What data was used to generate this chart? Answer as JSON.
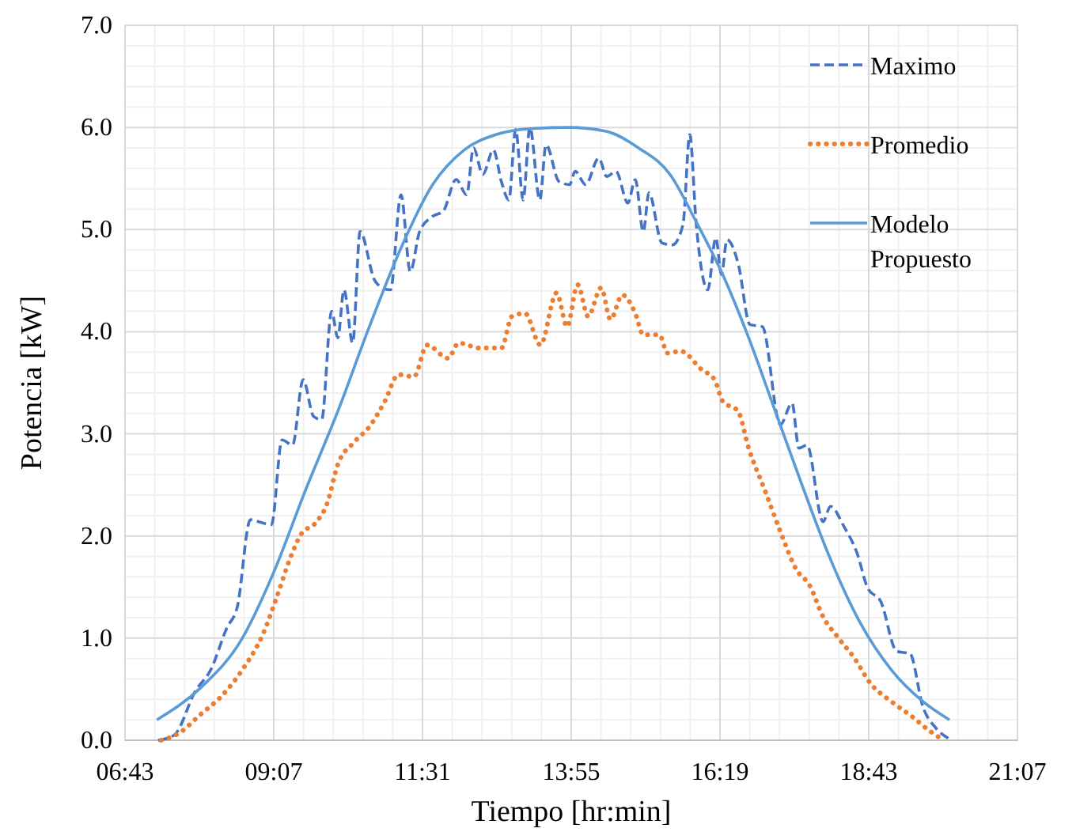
{
  "chart_data": {
    "type": "line",
    "xlabel": "Tiempo [hr:min]",
    "ylabel": "Potencia [kW]",
    "xlim": [
      6.7167,
      21.1167
    ],
    "ylim": [
      0,
      7
    ],
    "xticks": [
      {
        "value": 6.7167,
        "label": "06:43"
      },
      {
        "value": 9.1167,
        "label": "09:07"
      },
      {
        "value": 11.5167,
        "label": "11:31"
      },
      {
        "value": 13.9167,
        "label": "13:55"
      },
      {
        "value": 16.3167,
        "label": "16:19"
      },
      {
        "value": 18.7167,
        "label": "18:43"
      },
      {
        "value": 21.1167,
        "label": "21:07"
      }
    ],
    "yticks": [
      {
        "value": 0,
        "label": "0.0"
      },
      {
        "value": 1,
        "label": "1.0"
      },
      {
        "value": 2,
        "label": "2.0"
      },
      {
        "value": 3,
        "label": "3.0"
      },
      {
        "value": 4,
        "label": "4.0"
      },
      {
        "value": 5,
        "label": "5.0"
      },
      {
        "value": 6,
        "label": "6.0"
      },
      {
        "value": 7,
        "label": "7.0"
      }
    ],
    "grid": true,
    "legend": "top right",
    "series": [
      {
        "name": "Maximo",
        "color": "#4472c4",
        "line_style": "dashed",
        "x": [
          7.25,
          7.51,
          7.85,
          8.1,
          8.36,
          8.53,
          8.74,
          8.87,
          9.08,
          9.25,
          9.42,
          9.59,
          9.76,
          9.89,
          10.05,
          10.15,
          10.25,
          10.39,
          10.51,
          10.74,
          10.87,
          11.0,
          11.17,
          11.32,
          11.47,
          11.68,
          11.85,
          12.06,
          12.23,
          12.34,
          12.49,
          12.66,
          12.79,
          12.91,
          13.02,
          13.14,
          13.25,
          13.41,
          13.51,
          13.72,
          13.89,
          13.98,
          14.15,
          14.36,
          14.49,
          14.64,
          14.83,
          14.95,
          15.08,
          15.17,
          15.38,
          15.55,
          15.72,
          15.83,
          15.93,
          16.12,
          16.25,
          16.34,
          16.43,
          16.61,
          16.8,
          17.0,
          17.29,
          17.48,
          17.59,
          17.72,
          17.98,
          18.1,
          18.32,
          18.53,
          18.7,
          18.91,
          19.17,
          19.38,
          19.59,
          19.8,
          20.0
        ],
        "values": [
          0.0,
          0.05,
          0.48,
          0.69,
          1.1,
          1.31,
          2.16,
          2.14,
          2.11,
          2.94,
          2.89,
          3.53,
          3.17,
          3.14,
          4.2,
          3.94,
          4.41,
          3.89,
          4.98,
          4.51,
          4.43,
          4.41,
          5.34,
          4.59,
          4.98,
          5.13,
          5.18,
          5.49,
          5.34,
          5.8,
          5.54,
          5.78,
          5.47,
          5.29,
          5.98,
          5.29,
          6.0,
          5.29,
          5.83,
          5.47,
          5.44,
          5.57,
          5.44,
          5.7,
          5.52,
          5.57,
          5.26,
          5.49,
          4.98,
          5.36,
          4.87,
          4.85,
          5.05,
          5.93,
          5.08,
          4.41,
          4.92,
          4.56,
          4.9,
          4.67,
          4.07,
          4.05,
          3.09,
          3.3,
          2.86,
          2.89,
          2.14,
          2.29,
          2.09,
          1.83,
          1.49,
          1.36,
          0.87,
          0.85,
          0.33,
          0.12,
          0.02
        ]
      },
      {
        "name": "Promedio",
        "color": "#ed7d31",
        "line_style": "dotted",
        "x": [
          7.3,
          7.59,
          7.93,
          8.27,
          8.61,
          8.95,
          9.17,
          9.38,
          9.55,
          9.81,
          9.98,
          10.15,
          10.4,
          10.66,
          10.91,
          11.13,
          11.38,
          11.59,
          11.93,
          12.1,
          12.44,
          12.79,
          12.96,
          13.17,
          13.42,
          13.68,
          13.85,
          14.02,
          14.19,
          14.4,
          14.55,
          14.74,
          14.95,
          15.08,
          15.34,
          15.47,
          15.68,
          16.02,
          16.23,
          16.36,
          16.61,
          16.78,
          17.04,
          17.3,
          17.55,
          17.76,
          17.98,
          18.23,
          18.49,
          18.74,
          19.08,
          19.42,
          19.68,
          19.93
        ],
        "values": [
          0.0,
          0.07,
          0.25,
          0.43,
          0.69,
          1.05,
          1.41,
          1.78,
          2.01,
          2.14,
          2.32,
          2.7,
          2.91,
          3.07,
          3.32,
          3.58,
          3.56,
          3.87,
          3.74,
          3.89,
          3.84,
          3.84,
          4.15,
          4.18,
          3.87,
          4.38,
          4.05,
          4.46,
          4.15,
          4.43,
          4.12,
          4.36,
          4.18,
          3.97,
          3.97,
          3.79,
          3.81,
          3.63,
          3.53,
          3.32,
          3.22,
          2.86,
          2.45,
          2.03,
          1.67,
          1.52,
          1.21,
          1.0,
          0.8,
          0.56,
          0.38,
          0.23,
          0.1,
          0.0
        ]
      },
      {
        "name": "Modelo Propuesto",
        "color": "#5b9bd5",
        "line_style": "solid",
        "x": [
          7.23,
          7.93,
          8.61,
          9.12,
          9.63,
          10.15,
          10.66,
          11.17,
          11.68,
          12.19,
          12.7,
          13.3,
          13.89,
          14.49,
          15.0,
          15.51,
          15.93,
          16.36,
          16.78,
          17.21,
          17.64,
          18.06,
          18.57,
          19.08,
          19.59,
          20.02
        ],
        "values": [
          0.2,
          0.51,
          1.0,
          1.65,
          2.45,
          3.22,
          4.05,
          4.82,
          5.44,
          5.78,
          5.93,
          5.99,
          6.0,
          5.96,
          5.8,
          5.54,
          5.08,
          4.56,
          3.94,
          3.22,
          2.5,
          1.83,
          1.16,
          0.69,
          0.38,
          0.2
        ]
      }
    ]
  }
}
